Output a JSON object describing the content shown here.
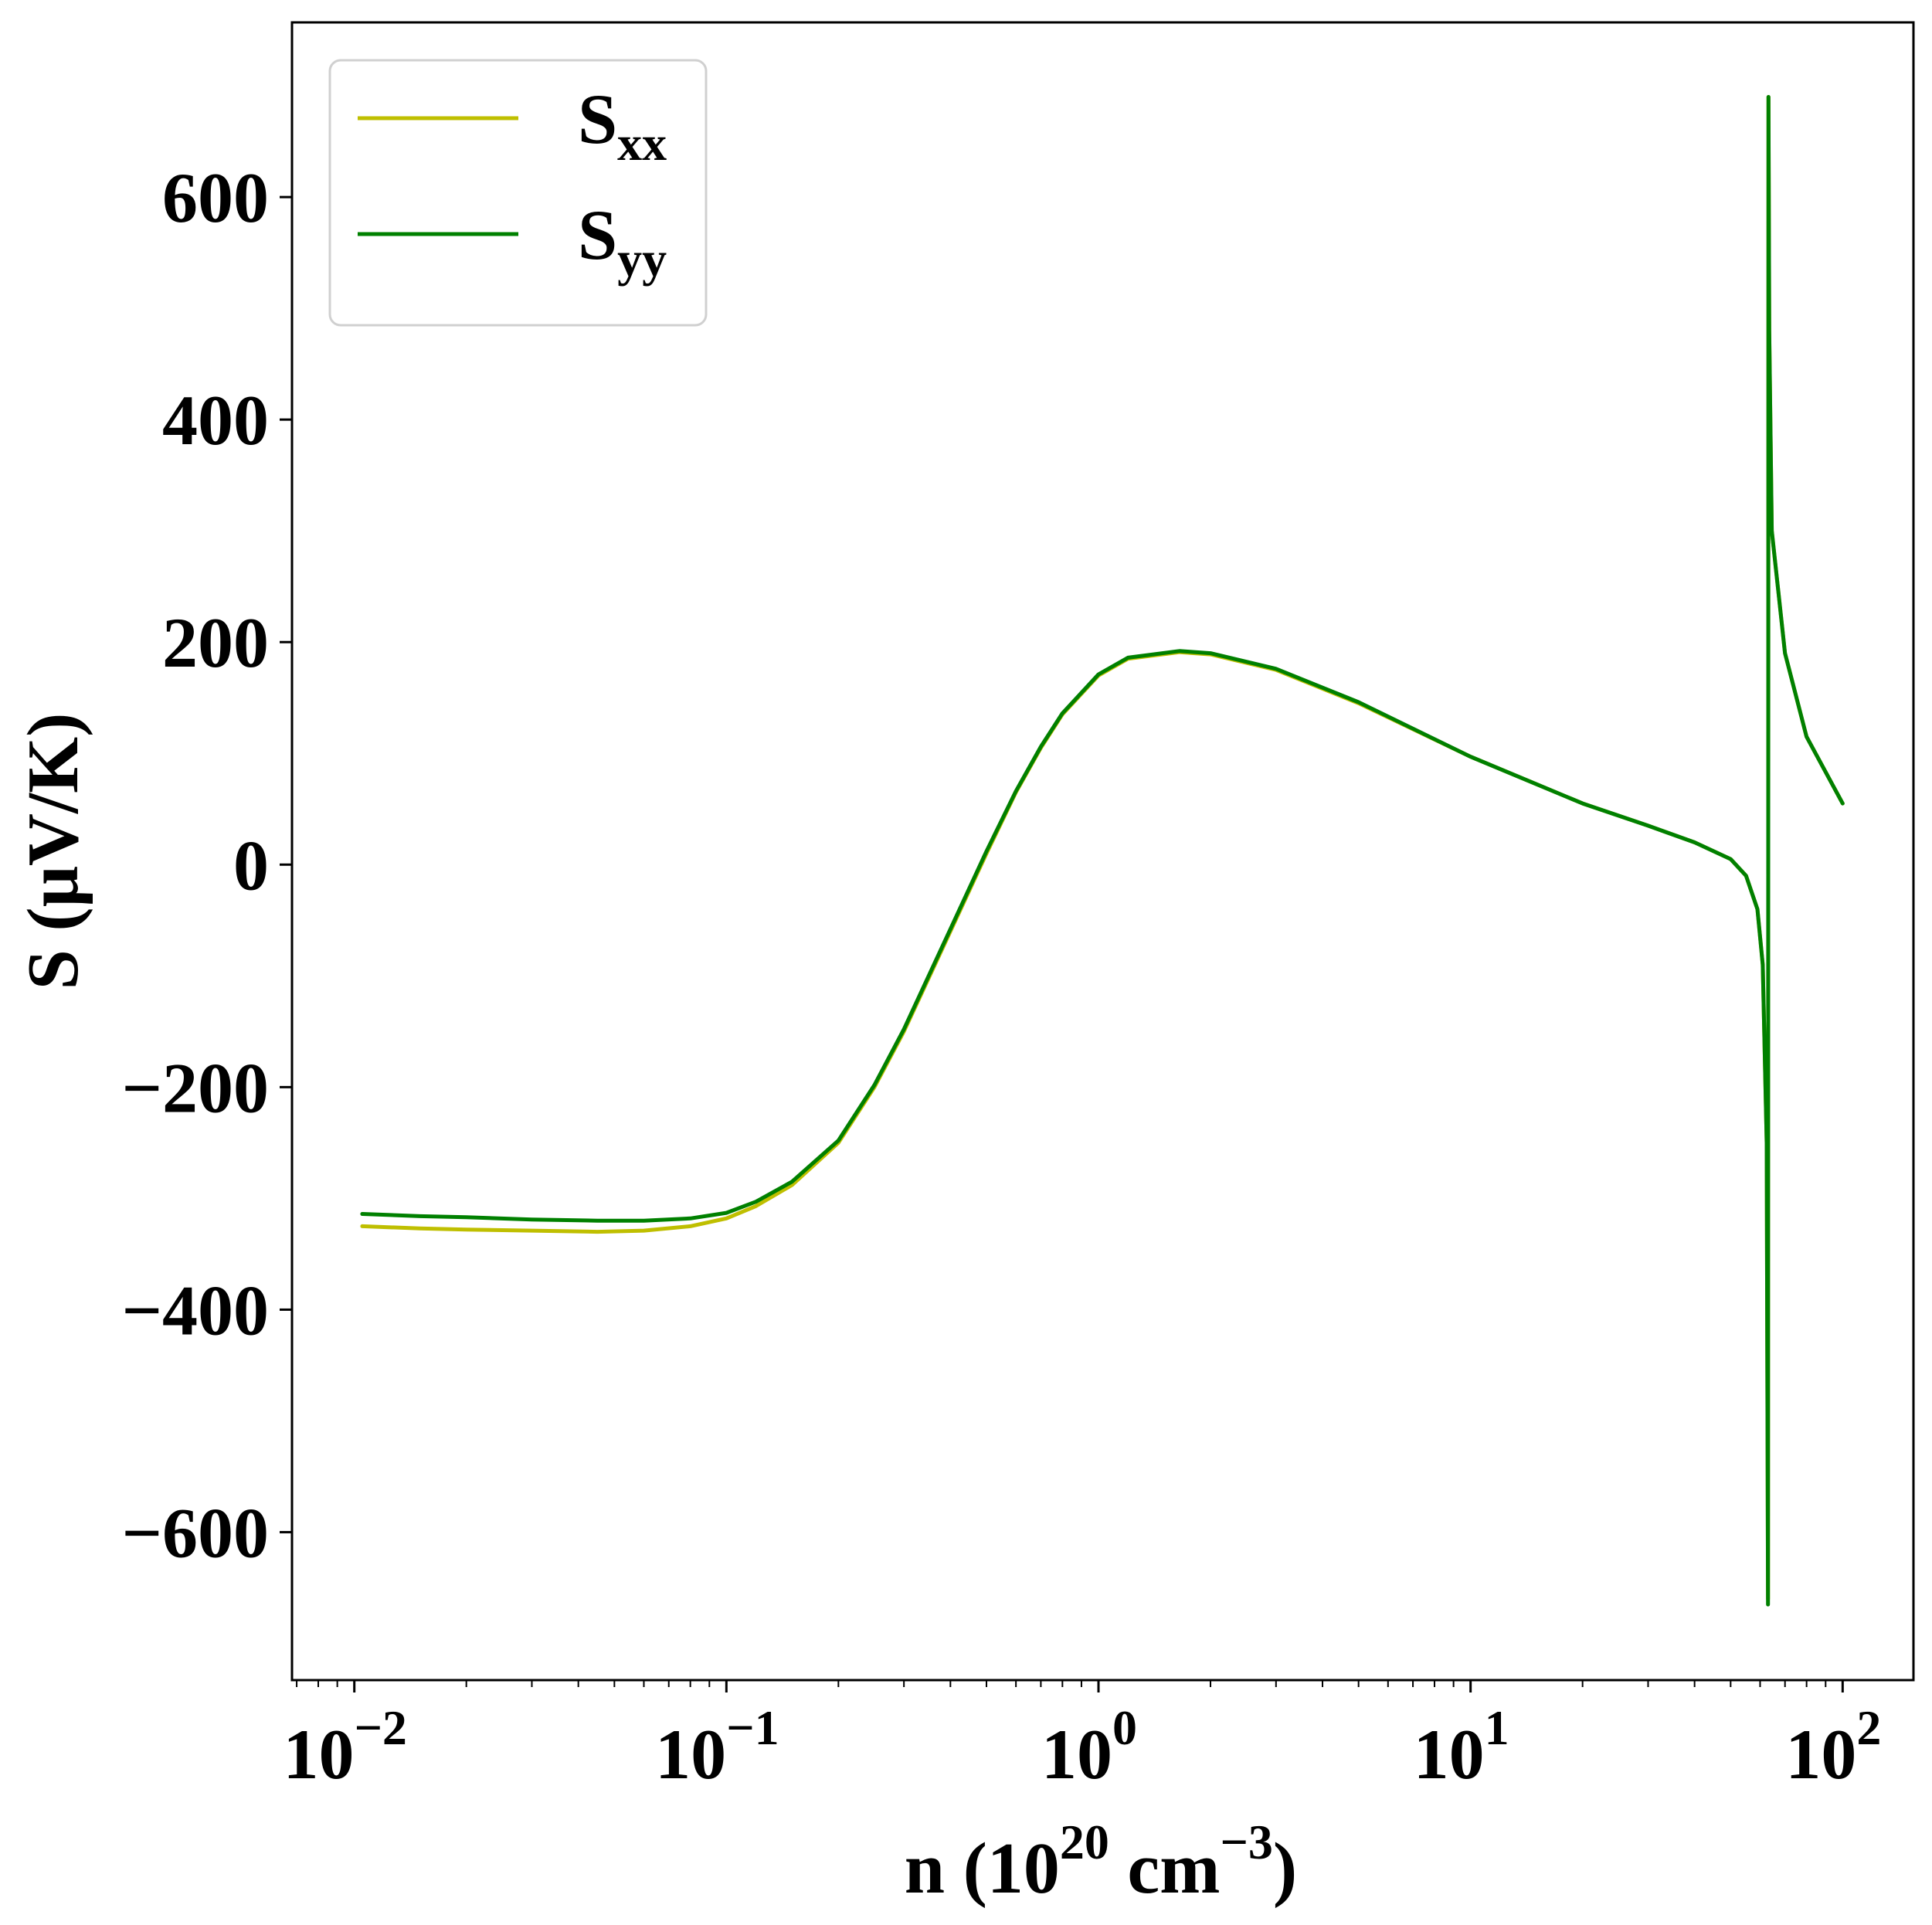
{
  "chart_data": {
    "type": "line",
    "x_scale": "log",
    "xlim": [
      0.0068,
      155
    ],
    "ylim": [
      -733,
      757
    ],
    "x_ticks": [
      {
        "value": 0.01,
        "base": "10",
        "exp": "−2"
      },
      {
        "value": 0.1,
        "base": "10",
        "exp": "−1"
      },
      {
        "value": 1,
        "base": "10",
        "exp": "0"
      },
      {
        "value": 10,
        "base": "10",
        "exp": "1"
      },
      {
        "value": 100,
        "base": "10",
        "exp": "2"
      }
    ],
    "y_ticks": [
      {
        "value": -600,
        "label": "−600"
      },
      {
        "value": -400,
        "label": "−400"
      },
      {
        "value": -200,
        "label": "−200"
      },
      {
        "value": 0,
        "label": "0"
      },
      {
        "value": 200,
        "label": "200"
      },
      {
        "value": 400,
        "label": "400"
      },
      {
        "value": 600,
        "label": "600"
      }
    ],
    "xlabel": {
      "pre": "n (10",
      "sup1": "20",
      "mid": " cm",
      "sup2": "−3",
      "post": ")"
    },
    "ylabel": "S (μV/K)",
    "grid": false,
    "legend_position": "upper-left",
    "series": [
      {
        "name": "S",
        "name_sub": "xx",
        "color": "#bfbf00",
        "points": [
          [
            0.0105,
            -325
          ],
          [
            0.015,
            -327
          ],
          [
            0.02,
            -328
          ],
          [
            0.03,
            -329
          ],
          [
            0.045,
            -330
          ],
          [
            0.06,
            -329
          ],
          [
            0.08,
            -325
          ],
          [
            0.1,
            -318
          ],
          [
            0.12,
            -307
          ],
          [
            0.15,
            -288
          ],
          [
            0.2,
            -250
          ],
          [
            0.25,
            -200
          ],
          [
            0.3,
            -150
          ],
          [
            0.4,
            -60
          ],
          [
            0.5,
            10
          ],
          [
            0.6,
            65
          ],
          [
            0.7,
            105
          ],
          [
            0.8,
            135
          ],
          [
            1.0,
            170
          ],
          [
            1.2,
            185
          ],
          [
            1.65,
            191
          ],
          [
            2.0,
            189
          ],
          [
            3.0,
            175
          ],
          [
            5.0,
            145
          ],
          [
            10.0,
            97
          ],
          [
            20.0,
            55
          ],
          [
            30.0,
            35
          ],
          [
            40.0,
            20
          ],
          [
            50.0,
            5
          ],
          [
            55.0,
            -10
          ],
          [
            59.0,
            -40
          ],
          [
            61.0,
            -90
          ],
          [
            62.5,
            -250
          ],
          [
            63.0,
            -660
          ],
          [
            63.2,
            690
          ],
          [
            63.5,
            480
          ],
          [
            64.5,
            300
          ],
          [
            70.0,
            190
          ],
          [
            80.0,
            115
          ],
          [
            100.0,
            55
          ]
        ]
      },
      {
        "name": "S",
        "name_sub": "yy",
        "color": "#008000",
        "points": [
          [
            0.0105,
            -314
          ],
          [
            0.015,
            -316
          ],
          [
            0.02,
            -317
          ],
          [
            0.03,
            -319
          ],
          [
            0.045,
            -320
          ],
          [
            0.06,
            -320
          ],
          [
            0.08,
            -318
          ],
          [
            0.1,
            -313
          ],
          [
            0.12,
            -303
          ],
          [
            0.15,
            -285
          ],
          [
            0.2,
            -248
          ],
          [
            0.25,
            -198
          ],
          [
            0.3,
            -148
          ],
          [
            0.4,
            -58
          ],
          [
            0.5,
            12
          ],
          [
            0.6,
            66
          ],
          [
            0.7,
            106
          ],
          [
            0.8,
            136
          ],
          [
            1.0,
            171
          ],
          [
            1.2,
            186
          ],
          [
            1.65,
            192
          ],
          [
            2.0,
            190
          ],
          [
            3.0,
            176
          ],
          [
            5.0,
            146
          ],
          [
            10.0,
            97
          ],
          [
            20.0,
            55
          ],
          [
            30.0,
            35
          ],
          [
            40.0,
            20
          ],
          [
            50.0,
            5
          ],
          [
            55.0,
            -10
          ],
          [
            59.0,
            -40
          ],
          [
            61.0,
            -90
          ],
          [
            62.5,
            -250
          ],
          [
            63.0,
            -665
          ],
          [
            63.2,
            690
          ],
          [
            63.5,
            480
          ],
          [
            64.5,
            300
          ],
          [
            70.0,
            190
          ],
          [
            80.0,
            115
          ],
          [
            100.0,
            55
          ]
        ]
      }
    ]
  }
}
